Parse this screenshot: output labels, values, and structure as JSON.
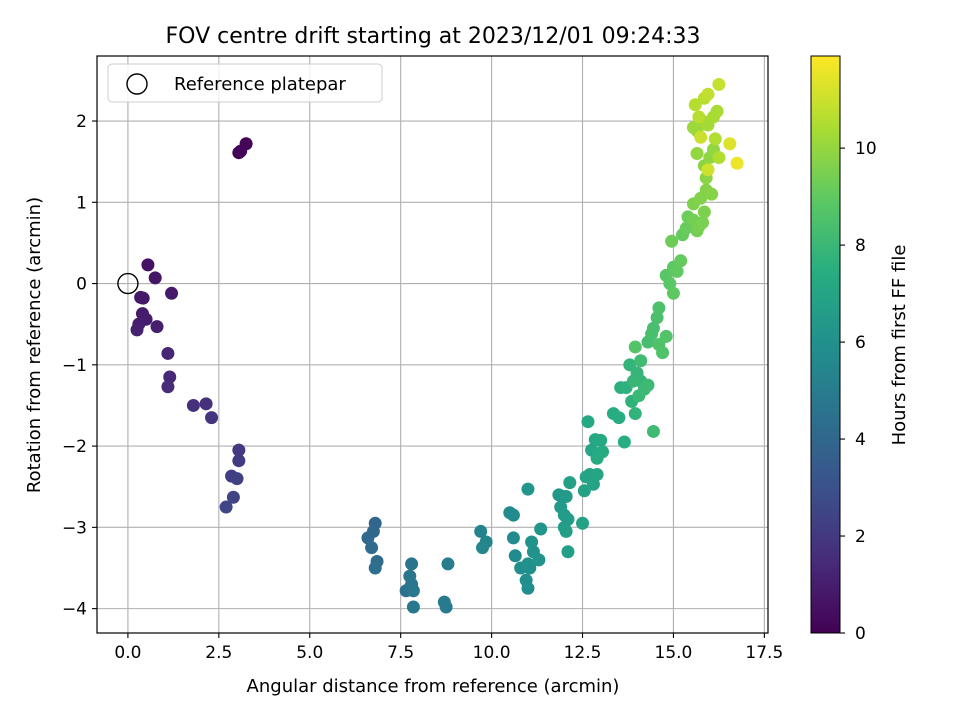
{
  "chart_data": {
    "type": "scatter",
    "title": "FOV centre drift starting at 2023/12/01 09:24:33",
    "xlabel": "Angular distance from reference (arcmin)",
    "ylabel": "Rotation from reference (arcmin)",
    "xlim": [
      -0.85,
      17.6
    ],
    "ylim": [
      -4.3,
      2.8
    ],
    "xticks": [
      0.0,
      2.5,
      5.0,
      7.5,
      10.0,
      12.5,
      15.0,
      17.5
    ],
    "xtick_labels": [
      "0.0",
      "2.5",
      "5.0",
      "7.5",
      "10.0",
      "12.5",
      "15.0",
      "17.5"
    ],
    "yticks": [
      2,
      1,
      0,
      -1,
      -2,
      -3,
      -4
    ],
    "ytick_labels": [
      "2",
      "1",
      "0",
      "−1",
      "−2",
      "−3",
      "−4"
    ],
    "grid": true,
    "legend": {
      "position": "top-left",
      "entries": [
        "Reference platepar"
      ]
    },
    "reference_point": {
      "x": 0.0,
      "y": 0.0,
      "label": "Reference platepar"
    },
    "colorbar": {
      "label": "Hours from first FF file",
      "colormap": "viridis",
      "range": [
        0,
        11.9
      ],
      "ticks": [
        0,
        2,
        4,
        6,
        8,
        10
      ],
      "tick_labels": [
        "0",
        "2",
        "4",
        "6",
        "8",
        "10"
      ],
      "stops": [
        "#440154",
        "#472c7a",
        "#3b518b",
        "#2c718e",
        "#21908d",
        "#27ad81",
        "#5cc863",
        "#aadc32",
        "#fde725"
      ]
    },
    "points": [
      [
        3.05,
        1.61,
        0.05
      ],
      [
        3.25,
        1.72,
        0.1
      ],
      [
        3.1,
        1.63,
        0.15
      ],
      [
        0.55,
        0.23,
        0.6
      ],
      [
        0.75,
        0.07,
        0.7
      ],
      [
        0.35,
        -0.17,
        0.75
      ],
      [
        0.42,
        -0.18,
        0.8
      ],
      [
        1.2,
        -0.12,
        0.85
      ],
      [
        0.4,
        -0.37,
        0.9
      ],
      [
        0.5,
        -0.44,
        0.95
      ],
      [
        0.3,
        -0.5,
        1.0
      ],
      [
        0.8,
        -0.53,
        1.05
      ],
      [
        0.25,
        -0.57,
        1.1
      ],
      [
        1.1,
        -0.86,
        1.3
      ],
      [
        1.15,
        -1.15,
        1.4
      ],
      [
        1.1,
        -1.27,
        1.5
      ],
      [
        1.8,
        -1.5,
        1.6
      ],
      [
        2.15,
        -1.48,
        1.7
      ],
      [
        2.3,
        -1.65,
        1.8
      ],
      [
        3.05,
        -2.05,
        2.0
      ],
      [
        3.05,
        -2.18,
        2.1
      ],
      [
        2.85,
        -2.37,
        2.2
      ],
      [
        3.0,
        -2.4,
        2.3
      ],
      [
        2.9,
        -2.63,
        2.4
      ],
      [
        2.7,
        -2.75,
        2.5
      ],
      [
        6.8,
        -2.95,
        4.0
      ],
      [
        6.75,
        -3.05,
        4.05
      ],
      [
        6.6,
        -3.13,
        4.1
      ],
      [
        6.7,
        -3.25,
        4.2
      ],
      [
        6.85,
        -3.42,
        4.25
      ],
      [
        6.8,
        -3.5,
        4.3
      ],
      [
        7.65,
        -3.78,
        4.5
      ],
      [
        7.75,
        -3.75,
        4.55
      ],
      [
        7.8,
        -3.45,
        4.6
      ],
      [
        7.75,
        -3.6,
        4.65
      ],
      [
        7.8,
        -3.7,
        4.7
      ],
      [
        7.85,
        -3.78,
        4.75
      ],
      [
        7.85,
        -3.98,
        4.8
      ],
      [
        8.7,
        -3.92,
        4.9
      ],
      [
        8.75,
        -3.98,
        4.95
      ],
      [
        8.8,
        -3.45,
        5.0
      ],
      [
        9.7,
        -3.05,
        5.3
      ],
      [
        9.85,
        -3.18,
        5.4
      ],
      [
        9.75,
        -3.25,
        5.5
      ],
      [
        10.5,
        -2.82,
        5.6
      ],
      [
        10.6,
        -2.85,
        5.65
      ],
      [
        10.6,
        -3.13,
        5.7
      ],
      [
        10.65,
        -3.35,
        5.75
      ],
      [
        10.8,
        -3.5,
        5.8
      ],
      [
        10.95,
        -3.65,
        5.85
      ],
      [
        11.0,
        -3.75,
        5.9
      ],
      [
        11.05,
        -3.5,
        5.95
      ],
      [
        11.0,
        -3.45,
        6.0
      ],
      [
        11.1,
        -3.18,
        6.05
      ],
      [
        11.15,
        -3.3,
        6.1
      ],
      [
        11.3,
        -3.4,
        6.15
      ],
      [
        11.35,
        -3.02,
        6.2
      ],
      [
        11.0,
        -2.53,
        6.25
      ],
      [
        11.85,
        -2.6,
        6.3
      ],
      [
        11.95,
        -2.62,
        6.35
      ],
      [
        12.05,
        -2.62,
        6.4
      ],
      [
        11.9,
        -2.75,
        6.45
      ],
      [
        12.0,
        -2.85,
        6.5
      ],
      [
        12.1,
        -2.9,
        6.55
      ],
      [
        12.0,
        -3.0,
        6.6
      ],
      [
        12.05,
        -3.05,
        6.65
      ],
      [
        12.1,
        -3.3,
        6.7
      ],
      [
        12.15,
        -2.45,
        6.75
      ],
      [
        12.5,
        -2.95,
        6.8
      ],
      [
        12.55,
        -2.55,
        6.85
      ],
      [
        12.6,
        -2.38,
        6.9
      ],
      [
        12.7,
        -2.35,
        6.95
      ],
      [
        12.8,
        -2.47,
        7.0
      ],
      [
        12.9,
        -2.35,
        7.05
      ],
      [
        12.75,
        -2.05,
        7.1
      ],
      [
        12.85,
        -1.92,
        7.15
      ],
      [
        13.0,
        -1.93,
        7.2
      ],
      [
        12.65,
        -1.7,
        7.25
      ],
      [
        12.9,
        -2.15,
        7.3
      ],
      [
        13.05,
        -2.07,
        7.35
      ],
      [
        13.35,
        -1.6,
        7.4
      ],
      [
        13.5,
        -1.65,
        7.45
      ],
      [
        13.65,
        -1.95,
        7.5
      ],
      [
        13.55,
        -1.28,
        7.6
      ],
      [
        13.7,
        -1.28,
        7.65
      ],
      [
        13.85,
        -1.45,
        7.7
      ],
      [
        13.95,
        -1.6,
        7.75
      ],
      [
        13.8,
        -1.0,
        7.8
      ],
      [
        14.0,
        -1.1,
        7.85
      ],
      [
        14.1,
        -1.2,
        7.9
      ],
      [
        13.9,
        -1.2,
        7.95
      ],
      [
        14.05,
        -1.38,
        8.0
      ],
      [
        14.2,
        -1.3,
        8.05
      ],
      [
        14.3,
        -1.25,
        8.1
      ],
      [
        14.45,
        -1.82,
        8.15
      ],
      [
        14.1,
        -0.95,
        8.2
      ],
      [
        14.3,
        -0.72,
        8.3
      ],
      [
        14.4,
        -0.62,
        8.35
      ],
      [
        14.45,
        -0.55,
        8.4
      ],
      [
        14.55,
        -0.42,
        8.45
      ],
      [
        14.6,
        -0.3,
        8.5
      ],
      [
        14.6,
        -0.75,
        8.55
      ],
      [
        14.7,
        -0.85,
        8.6
      ],
      [
        14.8,
        -0.65,
        8.65
      ],
      [
        13.95,
        -0.78,
        8.7
      ],
      [
        14.8,
        0.1,
        8.8
      ],
      [
        14.9,
        0.0,
        8.85
      ],
      [
        15.0,
        0.2,
        8.9
      ],
      [
        15.0,
        -0.12,
        8.95
      ],
      [
        15.1,
        0.15,
        9.0
      ],
      [
        15.2,
        0.28,
        9.05
      ],
      [
        15.25,
        0.6,
        9.1
      ],
      [
        15.35,
        0.68,
        9.15
      ],
      [
        15.4,
        0.82,
        9.2
      ],
      [
        14.95,
        0.52,
        9.25
      ],
      [
        15.55,
        0.78,
        9.35
      ],
      [
        15.65,
        0.65,
        9.4
      ],
      [
        15.7,
        0.7,
        9.45
      ],
      [
        15.8,
        0.75,
        9.5
      ],
      [
        15.85,
        0.88,
        9.55
      ],
      [
        15.55,
        0.98,
        9.6
      ],
      [
        15.75,
        1.05,
        9.65
      ],
      [
        15.9,
        1.15,
        9.7
      ],
      [
        16.05,
        1.1,
        9.75
      ],
      [
        15.9,
        1.3,
        9.8
      ],
      [
        15.85,
        1.45,
        9.85
      ],
      [
        16.0,
        1.55,
        9.9
      ],
      [
        16.1,
        1.65,
        9.95
      ],
      [
        15.65,
        1.6,
        10.0
      ],
      [
        15.55,
        1.92,
        10.1
      ],
      [
        15.65,
        1.88,
        10.15
      ],
      [
        15.8,
        2.0,
        10.2
      ],
      [
        15.95,
        1.95,
        10.3
      ],
      [
        16.1,
        2.05,
        10.35
      ],
      [
        16.2,
        2.12,
        10.4
      ],
      [
        16.25,
        1.55,
        10.5
      ],
      [
        16.15,
        1.78,
        10.55
      ],
      [
        15.6,
        2.2,
        10.6
      ],
      [
        15.7,
        2.05,
        10.65
      ],
      [
        15.85,
        2.28,
        10.7
      ],
      [
        15.95,
        2.33,
        10.8
      ],
      [
        16.25,
        2.45,
        10.9
      ],
      [
        15.75,
        1.8,
        11.0
      ],
      [
        15.95,
        1.4,
        11.05
      ],
      [
        16.55,
        1.72,
        11.3
      ],
      [
        16.75,
        1.48,
        11.6
      ]
    ]
  }
}
